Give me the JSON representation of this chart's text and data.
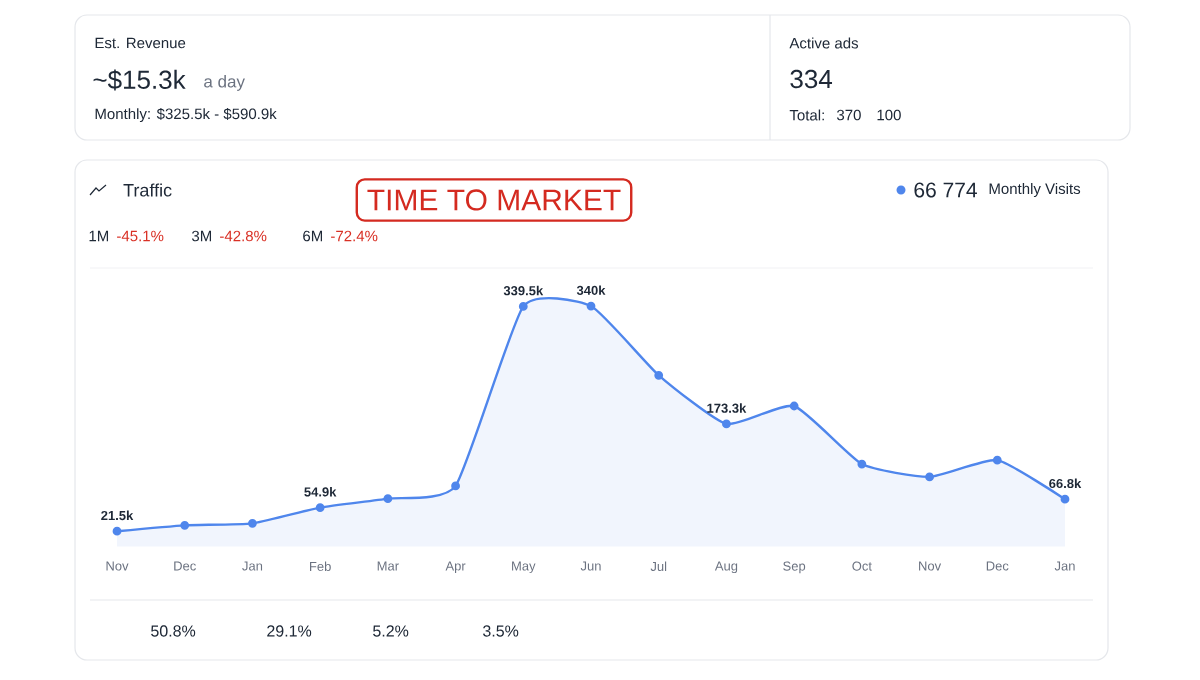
{
  "chart_data": {
    "type": "area",
    "title": "Traffic",
    "categories": [
      "Nov",
      "Dec",
      "Jan",
      "Feb",
      "Mar",
      "Apr",
      "May",
      "Jun",
      "Jul",
      "Aug",
      "Sep",
      "Oct",
      "Nov",
      "Dec",
      "Jan"
    ],
    "values": [
      21.5,
      29.8,
      32.6,
      54.9,
      67.5,
      85.6,
      339.5,
      340,
      242,
      173.3,
      198.6,
      116.5,
      98.3,
      122,
      66.8
    ],
    "value_labels": [
      "21.5k",
      null,
      null,
      "54.9k",
      null,
      null,
      "339.5k",
      "340k",
      null,
      "173.3k",
      null,
      null,
      null,
      null,
      "66.8k"
    ],
    "color": "#4f86ec",
    "marker": "circle",
    "annotations": [
      "Est. Revenue",
      "~$15.3k",
      "a day",
      "Monthly: $325.5k - $590.9k",
      "Active ads",
      "334",
      "Total:",
      "370",
      "100",
      "1M",
      "-45.1%",
      "3M",
      "-42.8%",
      "6M",
      "-72.4%",
      "66 774",
      "Monthly Visits",
      "50.8%",
      "29.1%",
      "5.2%",
      "3.5%",
      "TIME TO MARKET"
    ]
  }
}
